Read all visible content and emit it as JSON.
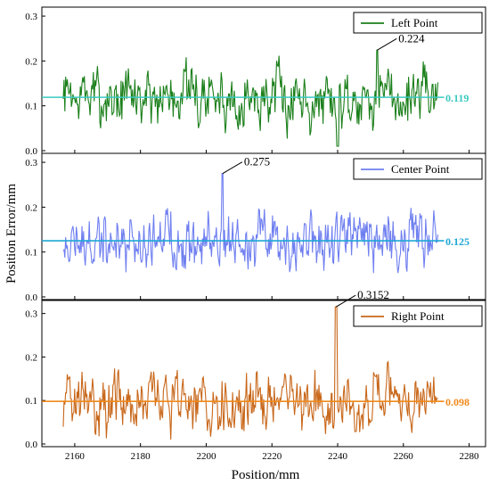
{
  "figure": {
    "xlabel": "Position/mm",
    "ylabel": "Position Error/mm"
  },
  "chart_data": [
    {
      "type": "line",
      "name": "Left Point",
      "color": "#1a7f1a",
      "mean_color": "#39c9c0",
      "xlim": [
        2150,
        2285
      ],
      "ylim": [
        0,
        0.32
      ],
      "yticks": [
        "0.0",
        "0.1",
        "0.2",
        "0.3"
      ],
      "mean": 0.119,
      "mean_label": "0.119",
      "peak": {
        "x": 2252,
        "y": 0.224,
        "label": "0.224"
      },
      "x_start": 2156.5,
      "x_end": 2270.5,
      "dips": [
        {
          "x": 2240,
          "y": 0.0
        }
      ],
      "seed": 7
    },
    {
      "type": "line",
      "name": "Center Point",
      "color": "#6f7ff0",
      "mean_color": "#1ea7d6",
      "xlim": [
        2150,
        2285
      ],
      "ylim": [
        0,
        0.32
      ],
      "yticks": [
        "0.0",
        "0.1",
        "0.2",
        "0.3"
      ],
      "mean": 0.125,
      "mean_label": "0.125",
      "peak": {
        "x": 2205,
        "y": 0.275,
        "label": "0.275"
      },
      "x_start": 2156.5,
      "x_end": 2270.5,
      "dips": [],
      "seed": 19
    },
    {
      "type": "line",
      "name": "Right Point",
      "color": "#c8671a",
      "mean_color": "#f08a1c",
      "xlim": [
        2150,
        2285
      ],
      "ylim": [
        0,
        0.33
      ],
      "yticks": [
        "0.0",
        "0.1",
        "0.2",
        "0.3"
      ],
      "mean": 0.098,
      "mean_label": "0.098",
      "peak": {
        "x": 2239.5,
        "y": 0.3152,
        "label": "0.3152"
      },
      "x_start": 2156.5,
      "x_end": 2270.5,
      "dips": [],
      "seed": 31
    }
  ],
  "xticks": [
    "2160",
    "2180",
    "2200",
    "2220",
    "2240",
    "2260",
    "2280"
  ],
  "xtick_values": [
    2160,
    2180,
    2200,
    2220,
    2240,
    2260,
    2280
  ]
}
